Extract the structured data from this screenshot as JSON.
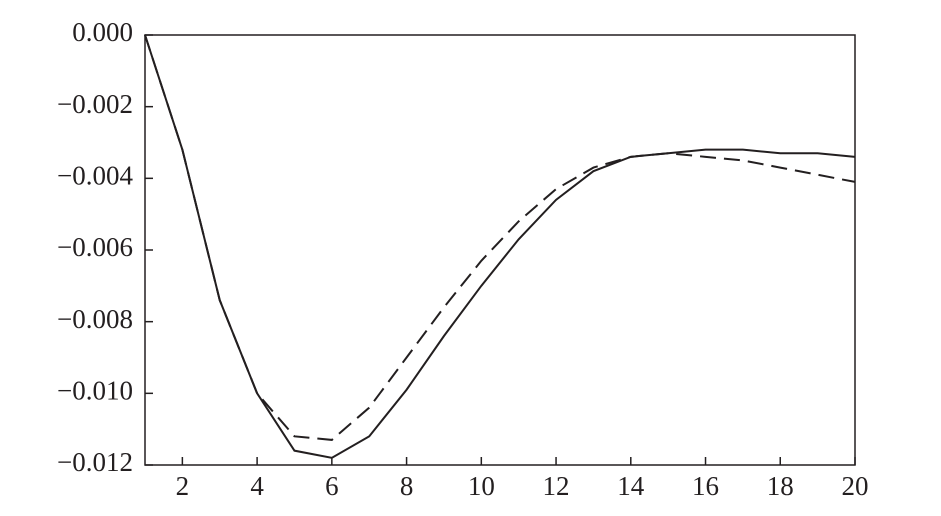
{
  "chart_data": {
    "type": "line",
    "x": [
      1,
      2,
      3,
      4,
      5,
      6,
      7,
      8,
      9,
      10,
      11,
      12,
      13,
      14,
      15,
      16,
      17,
      18,
      19,
      20
    ],
    "series": [
      {
        "color": "#231f20",
        "line_style": "solid",
        "values": [
          0,
          -0.0032,
          -0.0074,
          -0.01,
          -0.0116,
          -0.0118,
          -0.0112,
          -0.0099,
          -0.0084,
          -0.007,
          -0.0057,
          -0.0046,
          -0.0038,
          -0.0034,
          -0.0033,
          -0.0032,
          -0.0032,
          -0.0033,
          -0.0033,
          -0.0034
        ]
      },
      {
        "color": "#231f20",
        "line_style": "dashed",
        "values": [
          0,
          -0.0032,
          -0.0074,
          -0.01,
          -0.0112,
          -0.0113,
          -0.0104,
          -0.009,
          -0.0076,
          -0.0063,
          -0.0052,
          -0.0043,
          -0.0037,
          -0.0034,
          -0.0033,
          -0.0034,
          -0.0035,
          -0.0037,
          -0.0039,
          -0.0041
        ]
      }
    ],
    "xlim": [
      1,
      20
    ],
    "xticks": [
      2,
      4,
      6,
      8,
      10,
      12,
      14,
      16,
      18,
      20
    ],
    "ylim": [
      -0.012,
      0
    ],
    "yticks": [
      {
        "value": 0,
        "label": "0.000"
      },
      {
        "value": -0.002,
        "label": "−0.002"
      },
      {
        "value": -0.004,
        "label": "−0.004"
      },
      {
        "value": -0.006,
        "label": "−0.006"
      },
      {
        "value": -0.008,
        "label": "−0.008"
      },
      {
        "value": -0.01,
        "label": "−0.010"
      },
      {
        "value": -0.012,
        "label": "−0.012"
      }
    ]
  }
}
